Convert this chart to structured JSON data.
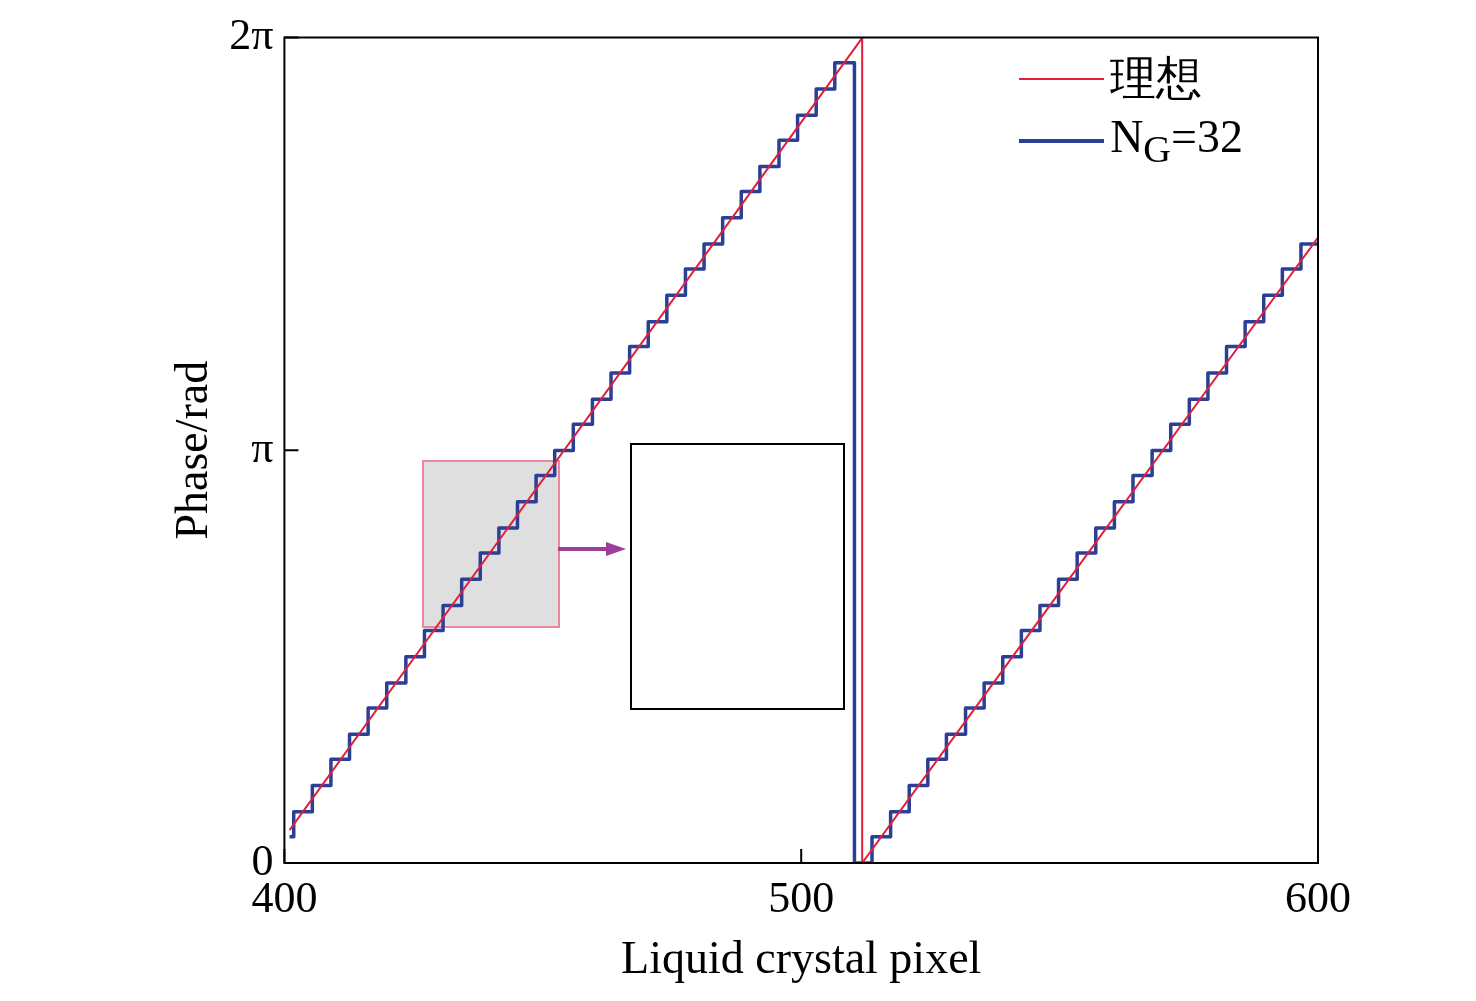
{
  "chart_data": {
    "type": "line",
    "xlabel": "Liquid crystal pixel",
    "ylabel": "Phase/rad",
    "xlim": [
      400,
      600
    ],
    "xticks": [
      400,
      500,
      600
    ],
    "ylim": [
      0,
      6.2832
    ],
    "yticks": [
      0,
      {
        "value": 3.1416,
        "label": "π"
      },
      {
        "value": 6.2832,
        "label": "2π"
      }
    ],
    "legend": "top right",
    "series": [
      {
        "name": "理想",
        "color": "#e0203a",
        "type": "line",
        "x": [
          401,
          511.8,
          511.8,
          600
        ],
        "values": [
          0.25,
          6.28,
          0,
          4.76
        ]
      },
      {
        "name": "N$_{G}$=32",
        "color": "#2b3f94",
        "type": "step",
        "x": [
          401,
          401.8,
          405.4,
          409.0,
          412.6,
          416.2,
          419.8,
          423.5,
          427.1,
          430.7,
          434.3,
          437.9,
          441.5,
          445.1,
          448.7,
          452.3,
          455.9,
          459.6,
          463.2,
          466.8,
          470.4,
          474.0,
          477.6,
          481.2,
          484.8,
          488.4,
          492.0,
          495.7,
          499.3,
          502.9,
          506.5,
          510.3,
          513.7,
          517.3,
          520.9,
          524.5,
          528.1,
          531.8,
          535.4,
          539.0,
          542.6,
          546.2,
          549.8,
          553.4,
          557.0,
          560.6,
          564.2,
          567.9,
          571.5,
          575.1,
          578.7,
          582.3,
          585.9,
          589.5,
          593.1,
          596.7,
          600
        ],
        "values": [
          0.2,
          0.39,
          0.59,
          0.79,
          0.98,
          1.18,
          1.37,
          1.57,
          1.77,
          1.96,
          2.16,
          2.36,
          2.55,
          2.75,
          2.95,
          3.14,
          3.34,
          3.53,
          3.73,
          3.93,
          4.12,
          4.32,
          4.52,
          4.71,
          4.91,
          5.11,
          5.3,
          5.5,
          5.69,
          5.89,
          6.09,
          0,
          0.2,
          0.39,
          0.59,
          0.79,
          0.98,
          1.18,
          1.37,
          1.57,
          1.77,
          1.96,
          2.16,
          2.36,
          2.55,
          2.75,
          2.95,
          3.14,
          3.34,
          3.53,
          3.73,
          3.93,
          4.12,
          4.32,
          4.52,
          4.71,
          4.71
        ]
      }
    ]
  }
}
